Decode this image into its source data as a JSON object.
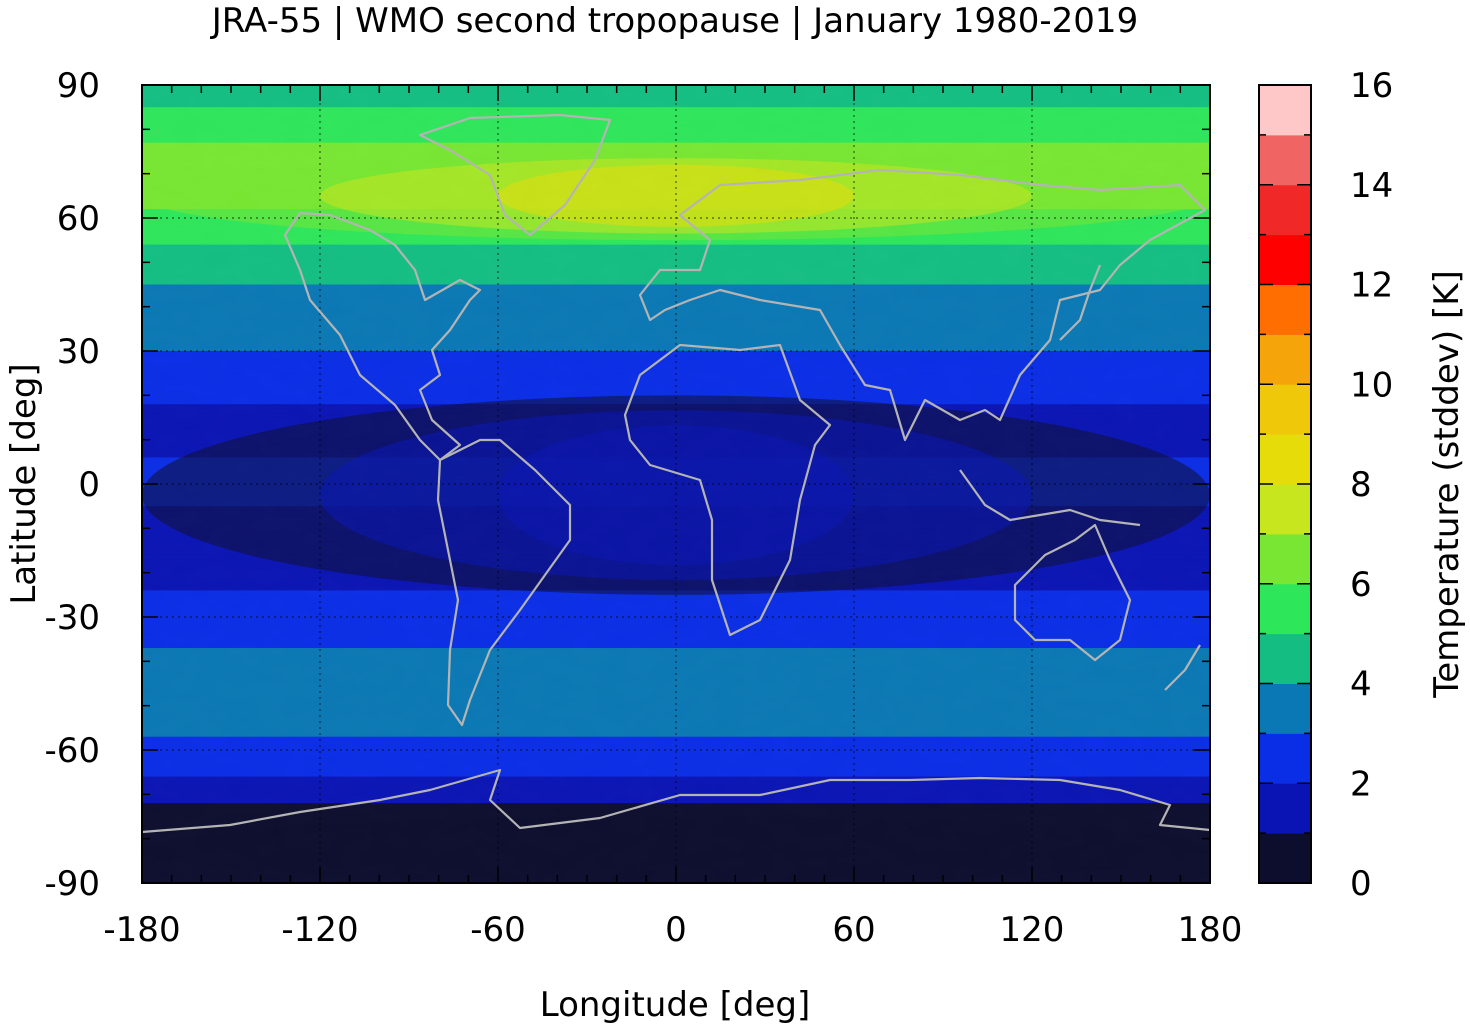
{
  "chart_data": {
    "type": "heatmap",
    "title": "JRA-55 | WMO second tropopause | January 1980-2019",
    "xlabel": "Longitude [deg]",
    "ylabel": "Latitude [deg]",
    "xlim": [
      -180,
      180
    ],
    "ylim": [
      -90,
      90
    ],
    "xticks": [
      -180,
      -120,
      -60,
      0,
      60,
      120,
      180
    ],
    "xtick_labels": [
      "-180",
      "-120",
      "-60",
      "0",
      "60",
      "120",
      "180"
    ],
    "yticks": [
      90,
      60,
      30,
      0,
      -30,
      -60,
      -90
    ],
    "ytick_labels": [
      "90",
      "60",
      "30",
      "0",
      "-30",
      "-60",
      "-90"
    ],
    "grid": true,
    "colorbar": {
      "label": "Temperature (stddev) [K]",
      "range": [
        0,
        16
      ],
      "ticks": [
        0,
        2,
        4,
        6,
        8,
        10,
        12,
        14,
        16
      ],
      "tick_labels": [
        "0",
        "2",
        "4",
        "6",
        "8",
        "10",
        "12",
        "14",
        "16"
      ],
      "levels": [
        {
          "from": 0,
          "to": 1,
          "color": "#0d0d2e"
        },
        {
          "from": 1,
          "to": 2,
          "color": "#0a14b4"
        },
        {
          "from": 2,
          "to": 3,
          "color": "#0a2de6"
        },
        {
          "from": 3,
          "to": 4,
          "color": "#0a78b4"
        },
        {
          "from": 4,
          "to": 5,
          "color": "#14be82"
        },
        {
          "from": 5,
          "to": 6,
          "color": "#2ee65a"
        },
        {
          "from": 6,
          "to": 7,
          "color": "#78e632"
        },
        {
          "from": 7,
          "to": 8,
          "color": "#c8e61e"
        },
        {
          "from": 8,
          "to": 9,
          "color": "#e6dc0a"
        },
        {
          "from": 9,
          "to": 10,
          "color": "#f0c80a"
        },
        {
          "from": 10,
          "to": 11,
          "color": "#f5a50a"
        },
        {
          "from": 11,
          "to": 12,
          "color": "#ff6e00"
        },
        {
          "from": 12,
          "to": 13,
          "color": "#ff0000"
        },
        {
          "from": 13,
          "to": 14,
          "color": "#f02828"
        },
        {
          "from": 14,
          "to": 15,
          "color": "#f06464"
        },
        {
          "from": 15,
          "to": 16,
          "color": "#ffc8c8"
        }
      ]
    },
    "zonal_profile": [
      {
        "lat": 90,
        "value": 4.6
      },
      {
        "lat": 82,
        "value": 5.3
      },
      {
        "lat": 75,
        "value": 6.3
      },
      {
        "lat": 68,
        "value": 6.8
      },
      {
        "lat": 60,
        "value": 5.8
      },
      {
        "lat": 52,
        "value": 4.8
      },
      {
        "lat": 44,
        "value": 3.9
      },
      {
        "lat": 36,
        "value": 3.3
      },
      {
        "lat": 30,
        "value": 3.0
      },
      {
        "lat": 22,
        "value": 2.4
      },
      {
        "lat": 14,
        "value": 1.6
      },
      {
        "lat": 6,
        "value": 2.0
      },
      {
        "lat": 0,
        "value": 2.4
      },
      {
        "lat": -8,
        "value": 1.7
      },
      {
        "lat": -16,
        "value": 1.2
      },
      {
        "lat": -24,
        "value": 2.0
      },
      {
        "lat": -32,
        "value": 2.5
      },
      {
        "lat": -40,
        "value": 3.3
      },
      {
        "lat": -48,
        "value": 3.6
      },
      {
        "lat": -56,
        "value": 3.1
      },
      {
        "lat": -62,
        "value": 2.5
      },
      {
        "lat": -68,
        "value": 1.8
      },
      {
        "lat": -74,
        "value": 0.7
      },
      {
        "lat": -90,
        "value": 0.5
      }
    ],
    "features": [
      {
        "region": "Arctic / Siberia high-latitude maximum",
        "lon": [
          -180,
          180
        ],
        "lat": [
          55,
          75
        ],
        "value_range": [
          6,
          9
        ]
      },
      {
        "region": "Tropical minimum band",
        "lon": [
          -180,
          180
        ],
        "lat": [
          -25,
          20
        ],
        "value_range": [
          0,
          2
        ]
      },
      {
        "region": "Antarctica",
        "lon": [
          -180,
          180
        ],
        "lat": [
          -90,
          -75
        ],
        "value_range": [
          0,
          1
        ]
      }
    ]
  }
}
